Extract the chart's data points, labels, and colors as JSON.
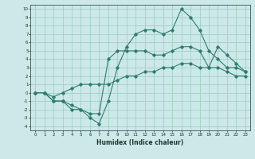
{
  "title": "",
  "xlabel": "Humidex (Indice chaleur)",
  "bg_color": "#cce8e8",
  "grid_color": "#99ccbb",
  "line_color": "#2e7d6e",
  "xlim": [
    -0.5,
    23.5
  ],
  "ylim": [
    -4.5,
    10.5
  ],
  "xticks": [
    0,
    1,
    2,
    3,
    4,
    5,
    6,
    7,
    8,
    9,
    10,
    11,
    12,
    13,
    14,
    15,
    16,
    17,
    18,
    19,
    20,
    21,
    22,
    23
  ],
  "yticks": [
    -4,
    -3,
    -2,
    -1,
    0,
    1,
    2,
    3,
    4,
    5,
    6,
    7,
    8,
    9,
    10
  ],
  "line1_x": [
    0,
    1,
    2,
    3,
    4,
    5,
    6,
    7,
    8,
    9,
    10,
    11,
    12,
    13,
    14,
    15,
    16,
    17,
    18,
    19,
    20,
    21,
    22,
    23
  ],
  "line1_y": [
    0,
    0,
    -1,
    -1,
    -2,
    -2,
    -3,
    -3.7,
    -1,
    3,
    5.5,
    7,
    7.5,
    7.5,
    7,
    7.5,
    10,
    9,
    7.5,
    5,
    4,
    3,
    3,
    2.5
  ],
  "line2_x": [
    0,
    1,
    2,
    3,
    4,
    5,
    6,
    7,
    8,
    9,
    10,
    11,
    12,
    13,
    14,
    15,
    16,
    17,
    18,
    19,
    20,
    21,
    22,
    23
  ],
  "line2_y": [
    0,
    0,
    -1,
    -1,
    -1.5,
    -2,
    -2.5,
    -2.5,
    4,
    5,
    5,
    5,
    5,
    4.5,
    4.5,
    5,
    5.5,
    5.5,
    5,
    3,
    5.5,
    4.5,
    3.5,
    2.5
  ],
  "line3_x": [
    0,
    1,
    2,
    3,
    4,
    5,
    6,
    7,
    8,
    9,
    10,
    11,
    12,
    13,
    14,
    15,
    16,
    17,
    18,
    19,
    20,
    21,
    22,
    23
  ],
  "line3_y": [
    0,
    0,
    -0.5,
    0,
    0.5,
    1,
    1,
    1,
    1,
    1.5,
    2,
    2,
    2.5,
    2.5,
    3,
    3,
    3.5,
    3.5,
    3,
    3,
    3,
    2.5,
    2,
    2
  ]
}
